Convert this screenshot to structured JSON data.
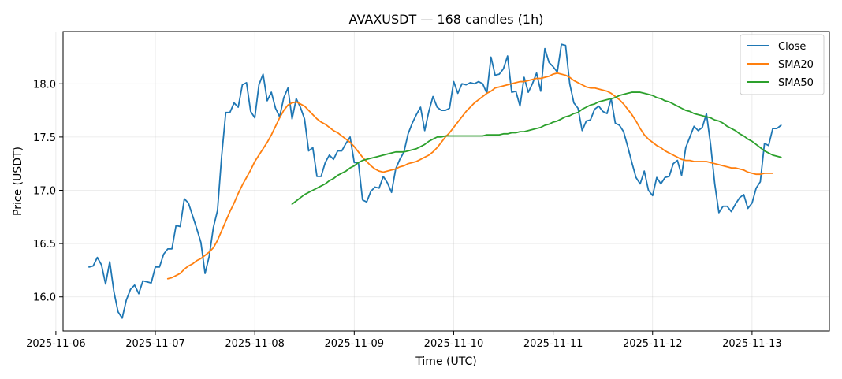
{
  "chart_data": {
    "type": "line",
    "title": "AVAXUSDT — 168 candles (1h)",
    "xlabel": "Time (UTC)",
    "ylabel": "Price (USDT)",
    "grid": true,
    "legend_position": "upper right",
    "xlim": [
      "2025-11-06 01:44",
      "2025-11-13 18:40"
    ],
    "ylim": [
      15.68,
      18.49
    ],
    "x_ticks": [
      "2025-11-06",
      "2025-11-07",
      "2025-11-08",
      "2025-11-09",
      "2025-11-10",
      "2025-11-11",
      "2025-11-12",
      "2025-11-13"
    ],
    "y_ticks": [
      "16.0",
      "16.5",
      "17.0",
      "17.5",
      "18.0"
    ],
    "x_start": "2025-11-06 08:00",
    "x_step_hours": 1,
    "series": [
      {
        "name": "Close",
        "color": "#1f77b4",
        "values": [
          16.28,
          16.29,
          16.37,
          16.3,
          16.12,
          16.33,
          16.05,
          15.86,
          15.8,
          15.97,
          16.07,
          16.11,
          16.03,
          16.15,
          16.14,
          16.13,
          16.28,
          16.28,
          16.4,
          16.45,
          16.45,
          16.67,
          16.66,
          16.92,
          16.88,
          16.76,
          16.64,
          16.51,
          16.22,
          16.38,
          16.65,
          16.81,
          17.32,
          17.73,
          17.73,
          17.82,
          17.78,
          17.99,
          18.01,
          17.74,
          17.68,
          17.99,
          18.09,
          17.84,
          17.92,
          17.77,
          17.69,
          17.87,
          17.96,
          17.67,
          17.86,
          17.78,
          17.67,
          17.37,
          17.4,
          17.13,
          17.13,
          17.26,
          17.33,
          17.29,
          17.37,
          17.37,
          17.44,
          17.5,
          17.26,
          17.26,
          16.91,
          16.89,
          16.99,
          17.03,
          17.02,
          17.13,
          17.07,
          16.98,
          17.2,
          17.29,
          17.36,
          17.53,
          17.63,
          17.71,
          17.78,
          17.56,
          17.74,
          17.88,
          17.78,
          17.75,
          17.75,
          17.77,
          18.02,
          17.91,
          18.0,
          17.99,
          18.01,
          18.0,
          18.02,
          18.0,
          17.91,
          18.25,
          18.08,
          18.09,
          18.14,
          18.26,
          17.92,
          17.93,
          17.79,
          18.06,
          17.92,
          18.0,
          18.1,
          17.93,
          18.33,
          18.2,
          18.16,
          18.11,
          18.37,
          18.36,
          18.0,
          17.82,
          17.77,
          17.56,
          17.65,
          17.66,
          17.76,
          17.79,
          17.74,
          17.72,
          17.86,
          17.63,
          17.61,
          17.55,
          17.41,
          17.26,
          17.12,
          17.06,
          17.18,
          17.0,
          16.95,
          17.12,
          17.06,
          17.12,
          17.13,
          17.25,
          17.28,
          17.14,
          17.4,
          17.5,
          17.6,
          17.56,
          17.59,
          17.72,
          17.43,
          17.06,
          16.79,
          16.85,
          16.85,
          16.8,
          16.87,
          16.93,
          16.96,
          16.83,
          16.88,
          17.02,
          17.08,
          17.44,
          17.42,
          17.58,
          17.58,
          17.61
        ]
      },
      {
        "name": "SMA20",
        "color": "#ff7f0e",
        "values": [
          null,
          null,
          null,
          null,
          null,
          null,
          null,
          null,
          null,
          null,
          null,
          null,
          null,
          null,
          null,
          null,
          null,
          null,
          null,
          16.17,
          16.18,
          16.2,
          16.22,
          16.26,
          16.29,
          16.31,
          16.34,
          16.36,
          16.39,
          16.42,
          16.46,
          16.53,
          16.62,
          16.71,
          16.8,
          16.88,
          16.97,
          17.05,
          17.12,
          17.19,
          17.27,
          17.33,
          17.39,
          17.45,
          17.52,
          17.6,
          17.68,
          17.75,
          17.8,
          17.82,
          17.83,
          17.81,
          17.79,
          17.75,
          17.71,
          17.67,
          17.64,
          17.62,
          17.59,
          17.56,
          17.54,
          17.51,
          17.48,
          17.45,
          17.41,
          17.36,
          17.31,
          17.27,
          17.23,
          17.2,
          17.18,
          17.17,
          17.18,
          17.19,
          17.2,
          17.22,
          17.23,
          17.25,
          17.26,
          17.27,
          17.29,
          17.31,
          17.33,
          17.36,
          17.4,
          17.45,
          17.5,
          17.54,
          17.59,
          17.64,
          17.69,
          17.74,
          17.78,
          17.82,
          17.85,
          17.88,
          17.91,
          17.93,
          17.96,
          17.97,
          17.98,
          17.99,
          18.0,
          18.01,
          18.02,
          18.02,
          18.03,
          18.04,
          18.05,
          18.05,
          18.06,
          18.07,
          18.09,
          18.1,
          18.09,
          18.08,
          18.06,
          18.03,
          18.01,
          17.99,
          17.97,
          17.96,
          17.96,
          17.95,
          17.94,
          17.93,
          17.91,
          17.88,
          17.85,
          17.81,
          17.76,
          17.71,
          17.65,
          17.58,
          17.52,
          17.48,
          17.45,
          17.42,
          17.4,
          17.37,
          17.35,
          17.33,
          17.31,
          17.29,
          17.28,
          17.28,
          17.27,
          17.27,
          17.27,
          17.27,
          17.26,
          17.25,
          17.24,
          17.23,
          17.22,
          17.21,
          17.21,
          17.2,
          17.19,
          17.17,
          17.16,
          17.15,
          17.15,
          17.16,
          17.16,
          17.16
        ]
      },
      {
        "name": "SMA50",
        "color": "#2ca02c",
        "values": [
          null,
          null,
          null,
          null,
          null,
          null,
          null,
          null,
          null,
          null,
          null,
          null,
          null,
          null,
          null,
          null,
          null,
          null,
          null,
          null,
          null,
          null,
          null,
          null,
          null,
          null,
          null,
          null,
          null,
          null,
          null,
          null,
          null,
          null,
          null,
          null,
          null,
          null,
          null,
          null,
          null,
          null,
          null,
          null,
          null,
          null,
          null,
          null,
          null,
          16.87,
          16.9,
          16.93,
          16.96,
          16.98,
          17.0,
          17.02,
          17.04,
          17.06,
          17.09,
          17.11,
          17.14,
          17.16,
          17.18,
          17.21,
          17.23,
          17.26,
          17.28,
          17.29,
          17.3,
          17.31,
          17.32,
          17.33,
          17.34,
          17.35,
          17.36,
          17.36,
          17.36,
          17.37,
          17.38,
          17.39,
          17.41,
          17.43,
          17.46,
          17.48,
          17.5,
          17.5,
          17.51,
          17.51,
          17.51,
          17.51,
          17.51,
          17.51,
          17.51,
          17.51,
          17.51,
          17.51,
          17.52,
          17.52,
          17.52,
          17.52,
          17.53,
          17.53,
          17.54,
          17.54,
          17.55,
          17.55,
          17.56,
          17.57,
          17.58,
          17.59,
          17.61,
          17.62,
          17.64,
          17.65,
          17.67,
          17.69,
          17.7,
          17.72,
          17.73,
          17.76,
          17.78,
          17.8,
          17.81,
          17.83,
          17.84,
          17.85,
          17.86,
          17.87,
          17.89,
          17.9,
          17.91,
          17.92,
          17.92,
          17.92,
          17.91,
          17.9,
          17.89,
          17.87,
          17.86,
          17.84,
          17.83,
          17.81,
          17.79,
          17.77,
          17.75,
          17.74,
          17.72,
          17.71,
          17.7,
          17.69,
          17.68,
          17.66,
          17.65,
          17.63,
          17.6,
          17.58,
          17.56,
          17.53,
          17.51,
          17.48,
          17.46,
          17.43,
          17.4,
          17.37,
          17.35,
          17.33,
          17.32,
          17.31
        ]
      }
    ]
  }
}
